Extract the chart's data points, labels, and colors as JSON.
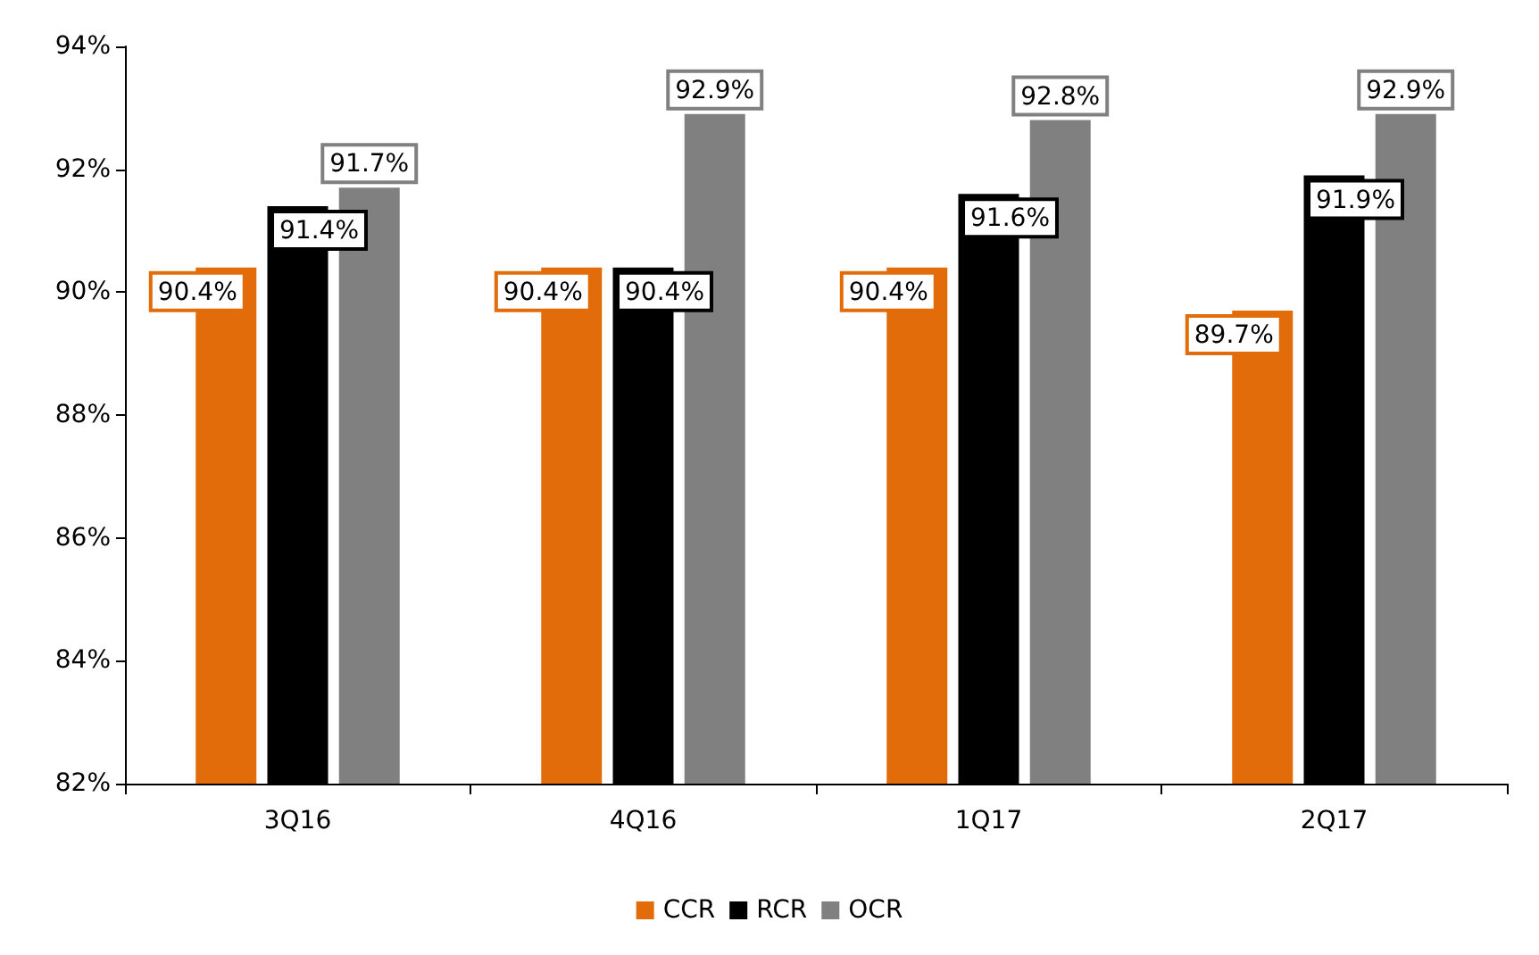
{
  "chart_data": {
    "type": "bar",
    "categories": [
      "3Q16",
      "4Q16",
      "1Q17",
      "2Q17"
    ],
    "series": [
      {
        "name": "CCR",
        "color": "#e36c0a",
        "values": [
          90.4,
          90.4,
          90.4,
          89.7
        ],
        "value_labels": [
          "90.4%",
          "90.4%",
          "90.4%",
          "89.7%"
        ]
      },
      {
        "name": "RCR",
        "color": "#000000",
        "values": [
          91.4,
          90.4,
          91.6,
          91.9
        ],
        "value_labels": [
          "91.4%",
          "90.4%",
          "91.6%",
          "91.9%"
        ]
      },
      {
        "name": "OCR",
        "color": "#808080",
        "values": [
          91.7,
          92.9,
          92.8,
          92.9
        ],
        "value_labels": [
          "91.7%",
          "92.9%",
          "92.8%",
          "92.9%"
        ]
      }
    ],
    "ylim": [
      82,
      94
    ],
    "yticks": [
      {
        "value": 82,
        "label": "82%"
      },
      {
        "value": 84,
        "label": "84%"
      },
      {
        "value": 86,
        "label": "86%"
      },
      {
        "value": 88,
        "label": "88%"
      },
      {
        "value": 90,
        "label": "90%"
      },
      {
        "value": 92,
        "label": "92%"
      },
      {
        "value": 94,
        "label": "94%"
      }
    ],
    "grid": false,
    "legend": "bottom"
  }
}
